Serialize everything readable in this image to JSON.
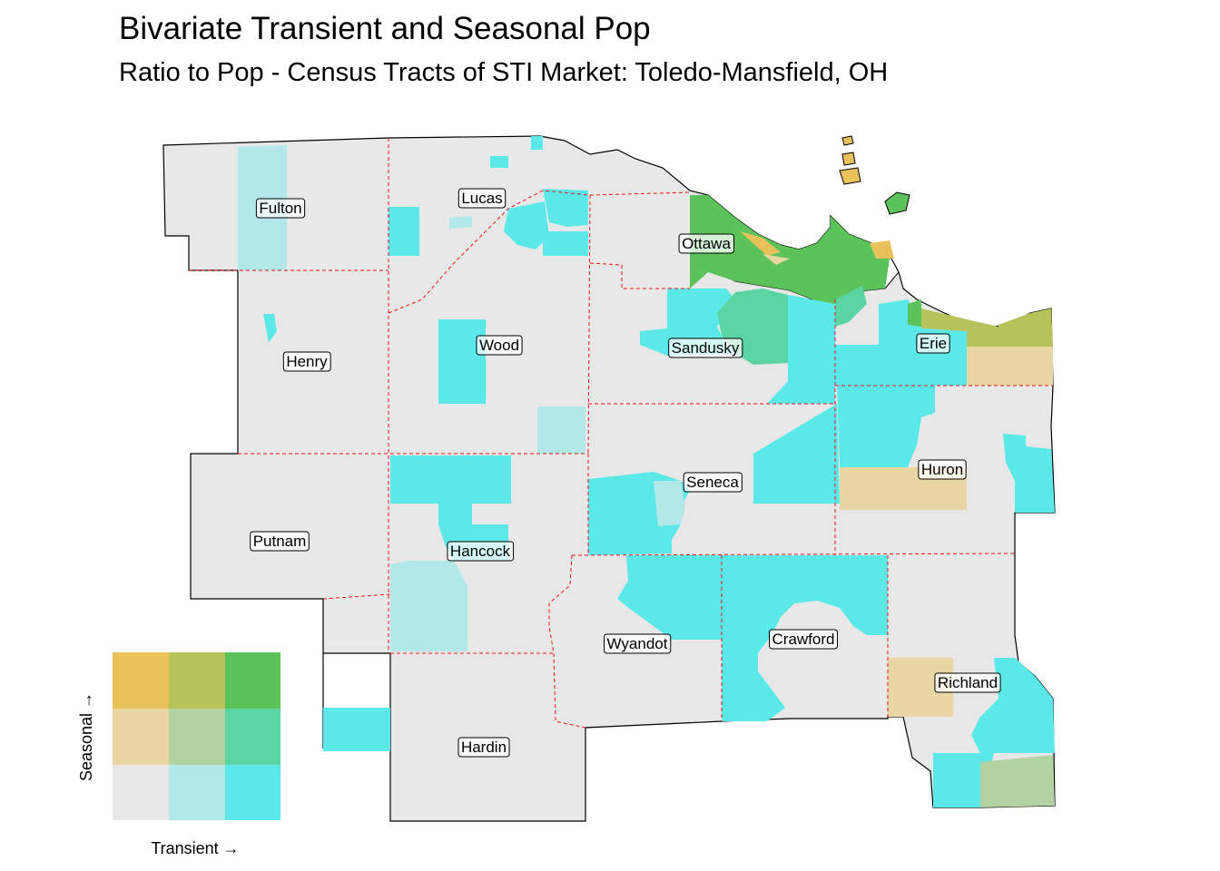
{
  "title": "Bivariate Transient and Seasonal Pop",
  "subtitle": "Ratio to Pop - Census Tracts of STI Market: Toledo-Mansfield, OH",
  "colors": {
    "background_tract": "#e8e8e8",
    "border": "#000000",
    "county_border": "#e8141a"
  },
  "legend": {
    "x_label": "Transient →",
    "y_label": "Seasonal →",
    "grid": [
      [
        "#e8c15a",
        "#b5c35a",
        "#5bc35a"
      ],
      [
        "#e8d6a3",
        "#b3d3a3",
        "#5ad4a3"
      ],
      [
        "#e8e8e8",
        "#b2e8e8",
        "#5ae8e8"
      ]
    ]
  },
  "counties": [
    {
      "name": "Fulton"
    },
    {
      "name": "Lucas"
    },
    {
      "name": "Ottawa"
    },
    {
      "name": "Henry"
    },
    {
      "name": "Wood"
    },
    {
      "name": "Sandusky"
    },
    {
      "name": "Erie"
    },
    {
      "name": "Huron"
    },
    {
      "name": "Seneca"
    },
    {
      "name": "Putnam"
    },
    {
      "name": "Hancock"
    },
    {
      "name": "Wyandot"
    },
    {
      "name": "Crawford"
    },
    {
      "name": "Richland"
    },
    {
      "name": "Hardin"
    }
  ]
}
